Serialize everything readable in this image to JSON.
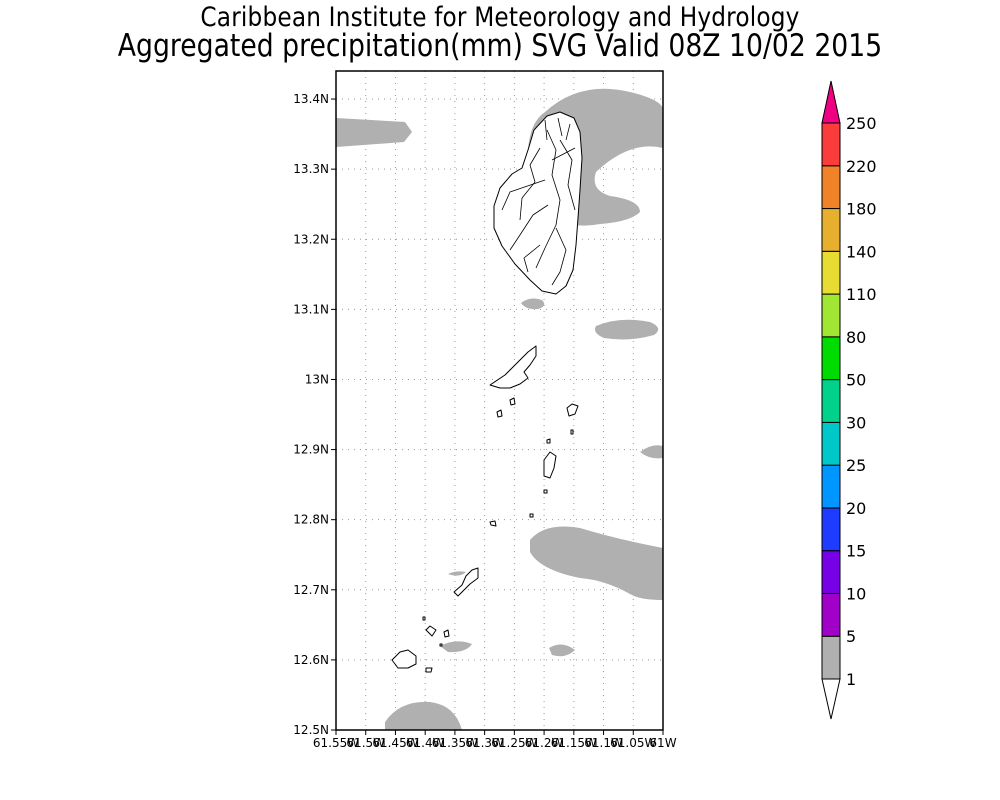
{
  "title": "Caribbean Institute for Meteorology and Hydrology",
  "subtitle": "Aggregated precipitation(mm) SVG Valid 08Z 10/02 2015",
  "map": {
    "lat_range": [
      12.5,
      13.44
    ],
    "lon_range": [
      -61.55,
      -61.0
    ],
    "lat_ticks": [
      "13.4N",
      "13.3N",
      "13.2N",
      "13.1N",
      "13N",
      "12.9N",
      "12.8N",
      "12.7N",
      "12.6N",
      "12.5N"
    ],
    "lon_ticks": [
      "61.55W",
      "61.5W",
      "61.45W",
      "61.4W",
      "61.35W",
      "61.3W",
      "61.25W",
      "61.2W",
      "61.15W",
      "61.1W",
      "61.05W",
      "61W"
    ],
    "grid": true,
    "precipitation_class_shown": "1-5 mm"
  },
  "colorbar": {
    "labels": [
      "1",
      "5",
      "10",
      "15",
      "20",
      "25",
      "30",
      "50",
      "80",
      "110",
      "140",
      "180",
      "220",
      "250"
    ],
    "colors": [
      "#b0b0b0",
      "#a000c8",
      "#7800e6",
      "#1e3cff",
      "#0096ff",
      "#00c8c8",
      "#00d28c",
      "#00dc00",
      "#a0e632",
      "#e6dc32",
      "#e6af2d",
      "#f08228",
      "#fa3c3c",
      "#f00082"
    ]
  }
}
